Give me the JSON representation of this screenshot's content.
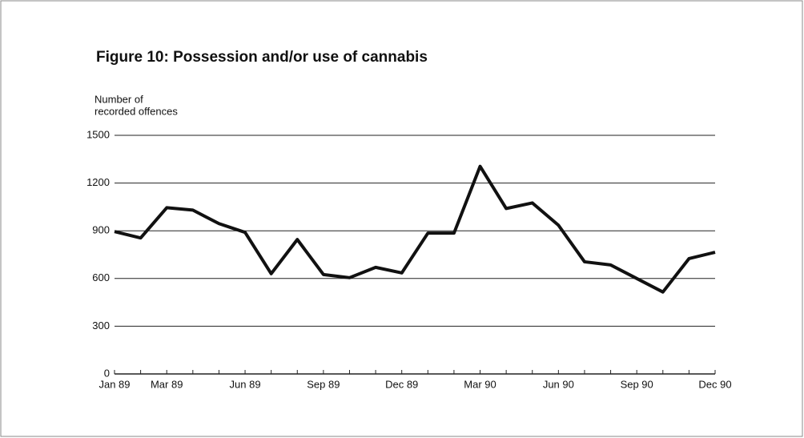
{
  "chart_data": {
    "type": "line",
    "title": "Figure 10:  Possession and/or use of cannabis",
    "ylabel": [
      "Number of",
      "recorded offences"
    ],
    "categories": [
      "Jan 89",
      null,
      "Mar 89",
      null,
      null,
      "Jun 89",
      null,
      null,
      "Sep 89",
      null,
      null,
      "Dec 89",
      null,
      null,
      "Mar 90",
      null,
      null,
      "Jun 90",
      null,
      null,
      "Sep 90",
      null,
      null,
      "Dec 90"
    ],
    "series": [
      {
        "name": "Possession and/or use of cannabis",
        "color": "#111111",
        "values": [
          895,
          855,
          1045,
          1030,
          945,
          890,
          630,
          845,
          625,
          605,
          670,
          635,
          885,
          885,
          1305,
          1040,
          1075,
          935,
          705,
          685,
          600,
          515,
          725,
          765
        ]
      }
    ],
    "ylim": [
      0,
      1500
    ],
    "yticks": [
      0,
      300,
      600,
      900,
      1200,
      1500
    ],
    "grid": true
  }
}
